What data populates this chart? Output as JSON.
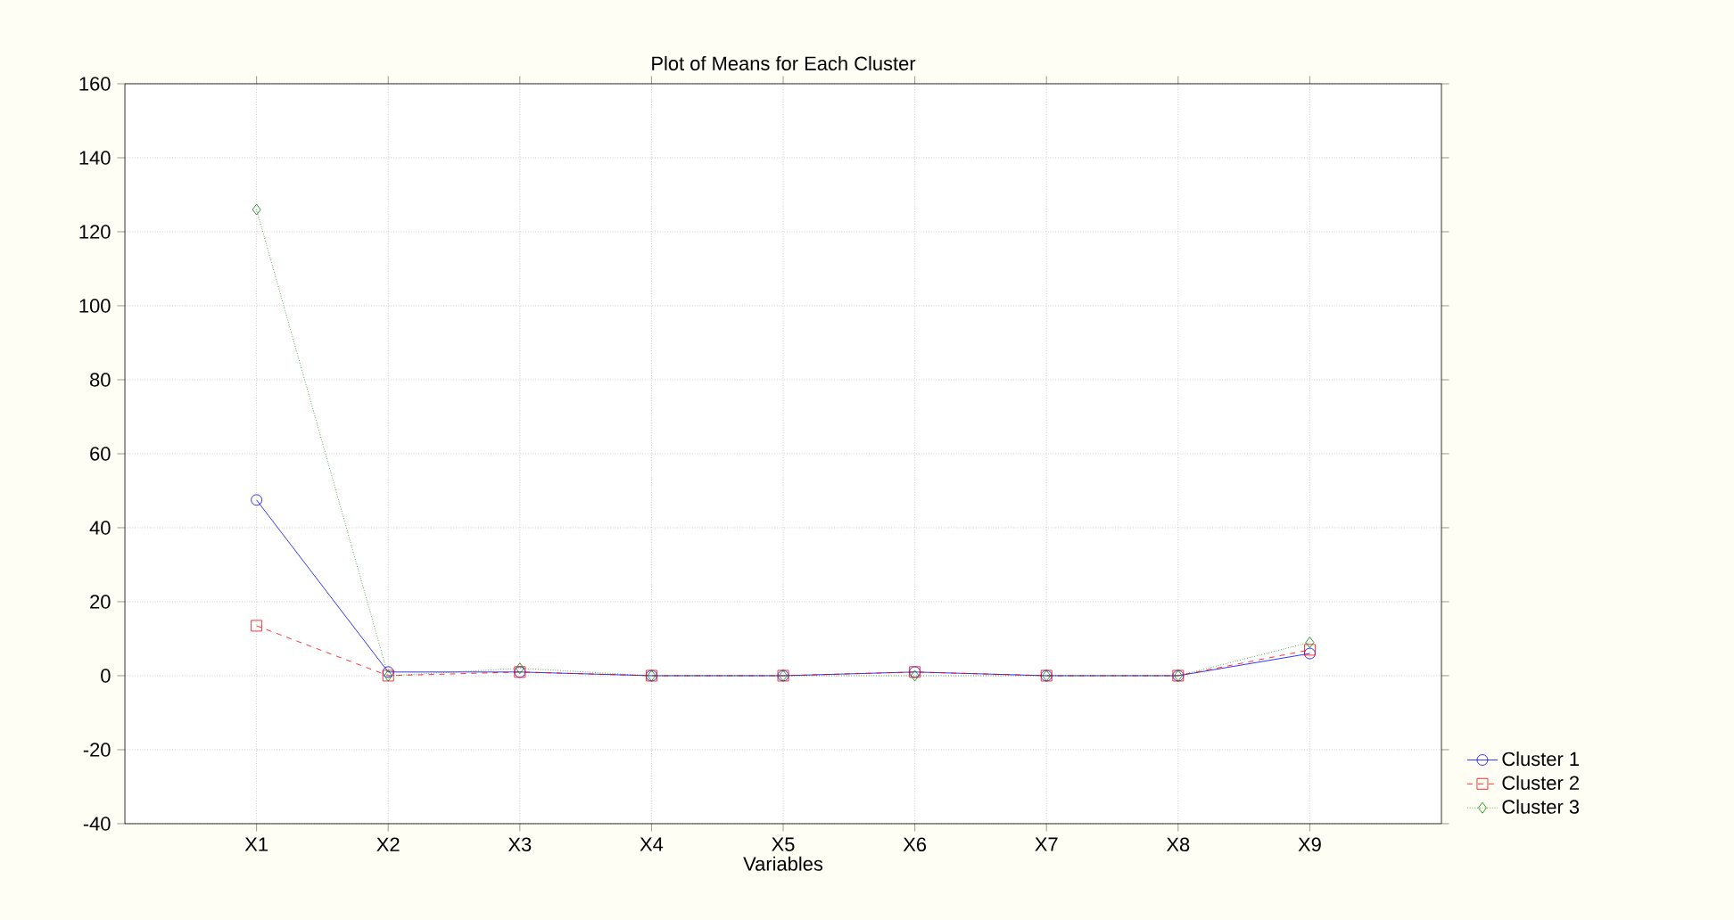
{
  "chart_data": {
    "type": "line",
    "title": "Plot of Means for Each Cluster",
    "xlabel": "Variables",
    "categories": [
      "X1",
      "X2",
      "X3",
      "X4",
      "X5",
      "X6",
      "X7",
      "X8",
      "X9"
    ],
    "series": [
      {
        "name": "Cluster 1",
        "color": "#0000ff",
        "marker": "circle",
        "line_style": "solid",
        "values": [
          47.5,
          1,
          1,
          0,
          0,
          1,
          0,
          0,
          6
        ]
      },
      {
        "name": "Cluster 2",
        "color": "#ff0000",
        "marker": "square",
        "line_style": "dashed",
        "values": [
          13.5,
          0,
          1,
          0,
          0,
          1,
          0,
          0,
          7
        ]
      },
      {
        "name": "Cluster 3",
        "color": "#008000",
        "marker": "diamond",
        "line_style": "dotted",
        "values": [
          126,
          0,
          2,
          0,
          0,
          0,
          0,
          0,
          9
        ]
      }
    ],
    "ylim": [
      -40,
      160
    ],
    "yticks": [
      -40,
      -20,
      0,
      20,
      40,
      60,
      80,
      100,
      120,
      140,
      160
    ],
    "grid": true,
    "legend": "bottom right"
  }
}
